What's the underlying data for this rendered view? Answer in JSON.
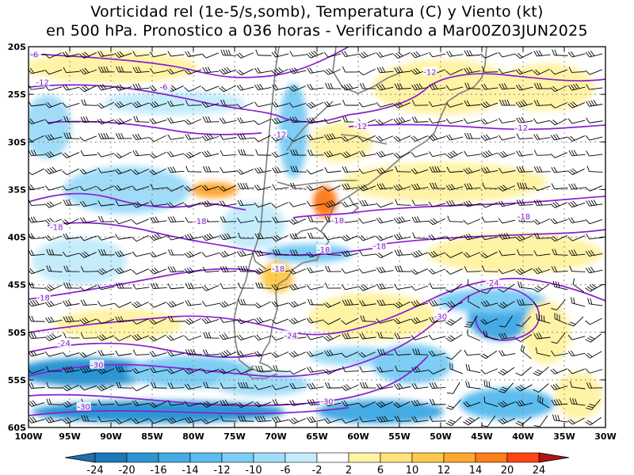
{
  "title": {
    "line1": "Vorticidad rel (1e-5/s,somb), Temperatura (C) y Viento (kt)",
    "line2": "en 500 hPa. Pronostico a 036 horas - Verificando a Mar00Z03JUN2025"
  },
  "map": {
    "lat_labels": [
      "20S",
      "25S",
      "30S",
      "35S",
      "40S",
      "45S",
      "50S",
      "55S",
      "60S"
    ],
    "lon_labels": [
      "100W",
      "95W",
      "90W",
      "85W",
      "80W",
      "75W",
      "70W",
      "65W",
      "60W",
      "55W",
      "50W",
      "45W",
      "40W",
      "35W",
      "30W"
    ],
    "grid": "dotted",
    "temperature_contour_color": "#8a1fd0",
    "temperature_labels": [
      {
        "text": "-6",
        "lon": -99.3,
        "lat": -20.8
      },
      {
        "text": "-6",
        "lon": -83.6,
        "lat": -24.2
      },
      {
        "text": "-12",
        "lon": -98.3,
        "lat": -23.7
      },
      {
        "text": "-12",
        "lon": -69.5,
        "lat": -29.2
      },
      {
        "text": "-12",
        "lon": -59.7,
        "lat": -28.3
      },
      {
        "text": "-12",
        "lon": -51.3,
        "lat": -22.6
      },
      {
        "text": "-12",
        "lon": -40.2,
        "lat": -28.5
      },
      {
        "text": "-18",
        "lon": -96.6,
        "lat": -38.9
      },
      {
        "text": "-18",
        "lon": -79.2,
        "lat": -38.3
      },
      {
        "text": "-18",
        "lon": -62.5,
        "lat": -38.2
      },
      {
        "text": "-18",
        "lon": -64.2,
        "lat": -41.3
      },
      {
        "text": "-18",
        "lon": -57.4,
        "lat": -40.9
      },
      {
        "text": "-18",
        "lon": -69.7,
        "lat": -43.3
      },
      {
        "text": "-18",
        "lon": -39.9,
        "lat": -37.8
      },
      {
        "text": "-18",
        "lon": -98.2,
        "lat": -46.3
      },
      {
        "text": "-24",
        "lon": -95.7,
        "lat": -51.1
      },
      {
        "text": "-24",
        "lon": -68.2,
        "lat": -50.3
      },
      {
        "text": "-24",
        "lon": -43.7,
        "lat": -44.8
      },
      {
        "text": "-30",
        "lon": -91.7,
        "lat": -53.4
      },
      {
        "text": "-30",
        "lon": -93.3,
        "lat": -57.8
      },
      {
        "text": "-30",
        "lon": -50.0,
        "lat": -48.3
      },
      {
        "text": "-30",
        "lon": -63.8,
        "lat": -57.2
      }
    ]
  },
  "colorbar": {
    "labels": [
      "-24",
      "-20",
      "-16",
      "-14",
      "-12",
      "-10",
      "-6",
      "-2",
      "2",
      "6",
      "10",
      "12",
      "14",
      "20",
      "24"
    ],
    "colors": [
      "#1a78b8",
      "#2c95d3",
      "#44abe4",
      "#5cbdee",
      "#7dcdf5",
      "#a0dcf8",
      "#c4ecfb",
      "#ffffff",
      "#fff3a5",
      "#ffe27a",
      "#ffc94c",
      "#ffa830",
      "#ff7d1a",
      "#ff4410"
    ],
    "low_end_color": "#1e6fa9",
    "high_end_color": "#b31212"
  }
}
